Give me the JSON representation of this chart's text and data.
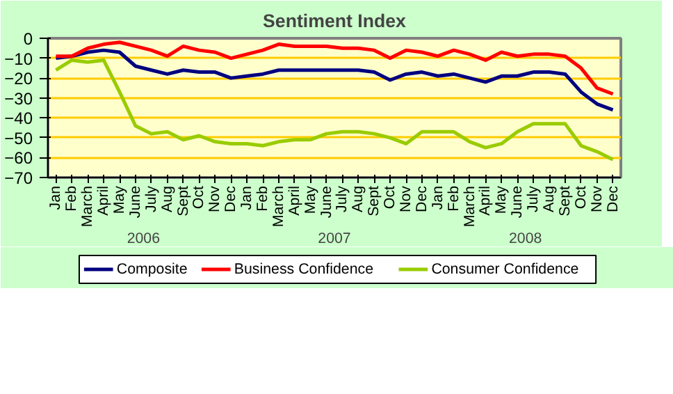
{
  "chart_data": {
    "type": "line",
    "title": "Sentiment Index",
    "categories": [
      "Jan",
      "Feb",
      "March",
      "April",
      "May",
      "June",
      "July",
      "Aug",
      "Sept",
      "Oct",
      "Nov",
      "Dec",
      "Jan",
      "Feb",
      "March",
      "April",
      "May",
      "June",
      "July",
      "Aug",
      "Sept",
      "Oct",
      "Nov",
      "Dec",
      "Jan",
      "Feb",
      "March",
      "April",
      "May",
      "June",
      "July",
      "Aug",
      "Sept",
      "Oct",
      "Nov",
      "Dec"
    ],
    "annotations": [
      "2006",
      "2007",
      "2008"
    ],
    "series": [
      {
        "name": "Composite",
        "color": "#000080",
        "values": [
          -10,
          -9,
          -7,
          -6,
          -7,
          -14,
          -16,
          -18,
          -16,
          -17,
          -17,
          -20,
          -19,
          -18,
          -16,
          -16,
          -16,
          -16,
          -16,
          -16,
          -17,
          -21,
          -18,
          -17,
          -19,
          -18,
          -20,
          -22,
          -19,
          -19,
          -17,
          -17,
          -18,
          -27,
          -33,
          -36
        ]
      },
      {
        "name": "Business Confidence",
        "color": "#ff0000",
        "values": [
          -9,
          -9,
          -5,
          -3,
          -2,
          -4,
          -6,
          -9,
          -4,
          -6,
          -7,
          -10,
          -8,
          -6,
          -3,
          -4,
          -4,
          -4,
          -5,
          -5,
          -6,
          -10,
          -6,
          -7,
          -9,
          -6,
          -8,
          -11,
          -7,
          -9,
          -8,
          -8,
          -9,
          -15,
          -25,
          -28
        ]
      },
      {
        "name": "Consumer Confidence",
        "color": "#99cc00",
        "values": [
          -16,
          -11,
          -12,
          -11,
          -27,
          -44,
          -48,
          -47,
          -51,
          -49,
          -52,
          -53,
          -53,
          -54,
          -52,
          -51,
          -51,
          -48,
          -47,
          -47,
          -48,
          -50,
          -53,
          -47,
          -47,
          -47,
          -52,
          -55,
          -53,
          -47,
          -43,
          -43,
          -43,
          -54,
          -57,
          -61
        ]
      }
    ],
    "ylim": [
      -70,
      0
    ],
    "yticks": [
      -70,
      -60,
      -50,
      -40,
      -30,
      -20,
      -10,
      0
    ],
    "grid": "y",
    "legend": "bottom",
    "marker": "none",
    "line_style": "solid"
  }
}
